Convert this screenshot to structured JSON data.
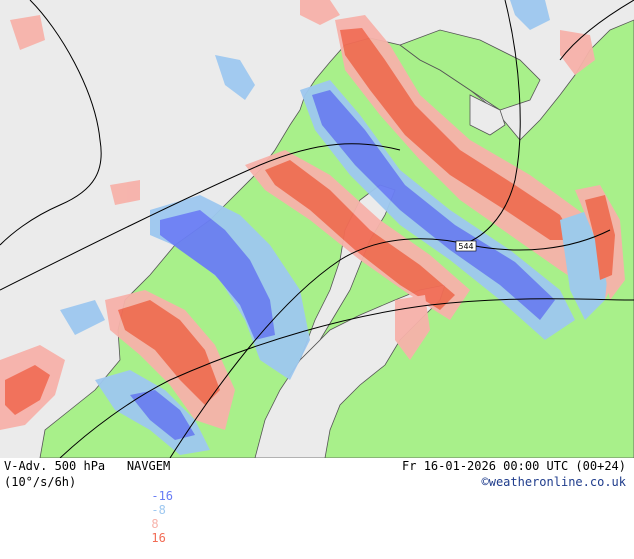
{
  "header": {
    "title": "V-Adv. 500 hPa   NAVGEM",
    "units": "(10°/s/6h)",
    "valid_time": "Fr 16-01-2026 00:00 UTC (00+24)",
    "credit": "©weatheronline.co.uk"
  },
  "legend": [
    {
      "label": "-16",
      "color": "#6a7ef5"
    },
    {
      "label": "-8",
      "color": "#9ec8f0"
    },
    {
      "label": "8",
      "color": "#f7b2aa"
    },
    {
      "label": "16",
      "color": "#f26c55"
    }
  ],
  "map": {
    "contour_label": "544",
    "colors": {
      "sea": "#ebebeb",
      "land": "#a8f08a",
      "strong_negative": "#6a7ef5",
      "weak_negative": "#9ec8f0",
      "weak_positive": "#f7b2aa",
      "strong_positive": "#f26c55",
      "coast": "#555555",
      "contour": "#000000"
    }
  }
}
